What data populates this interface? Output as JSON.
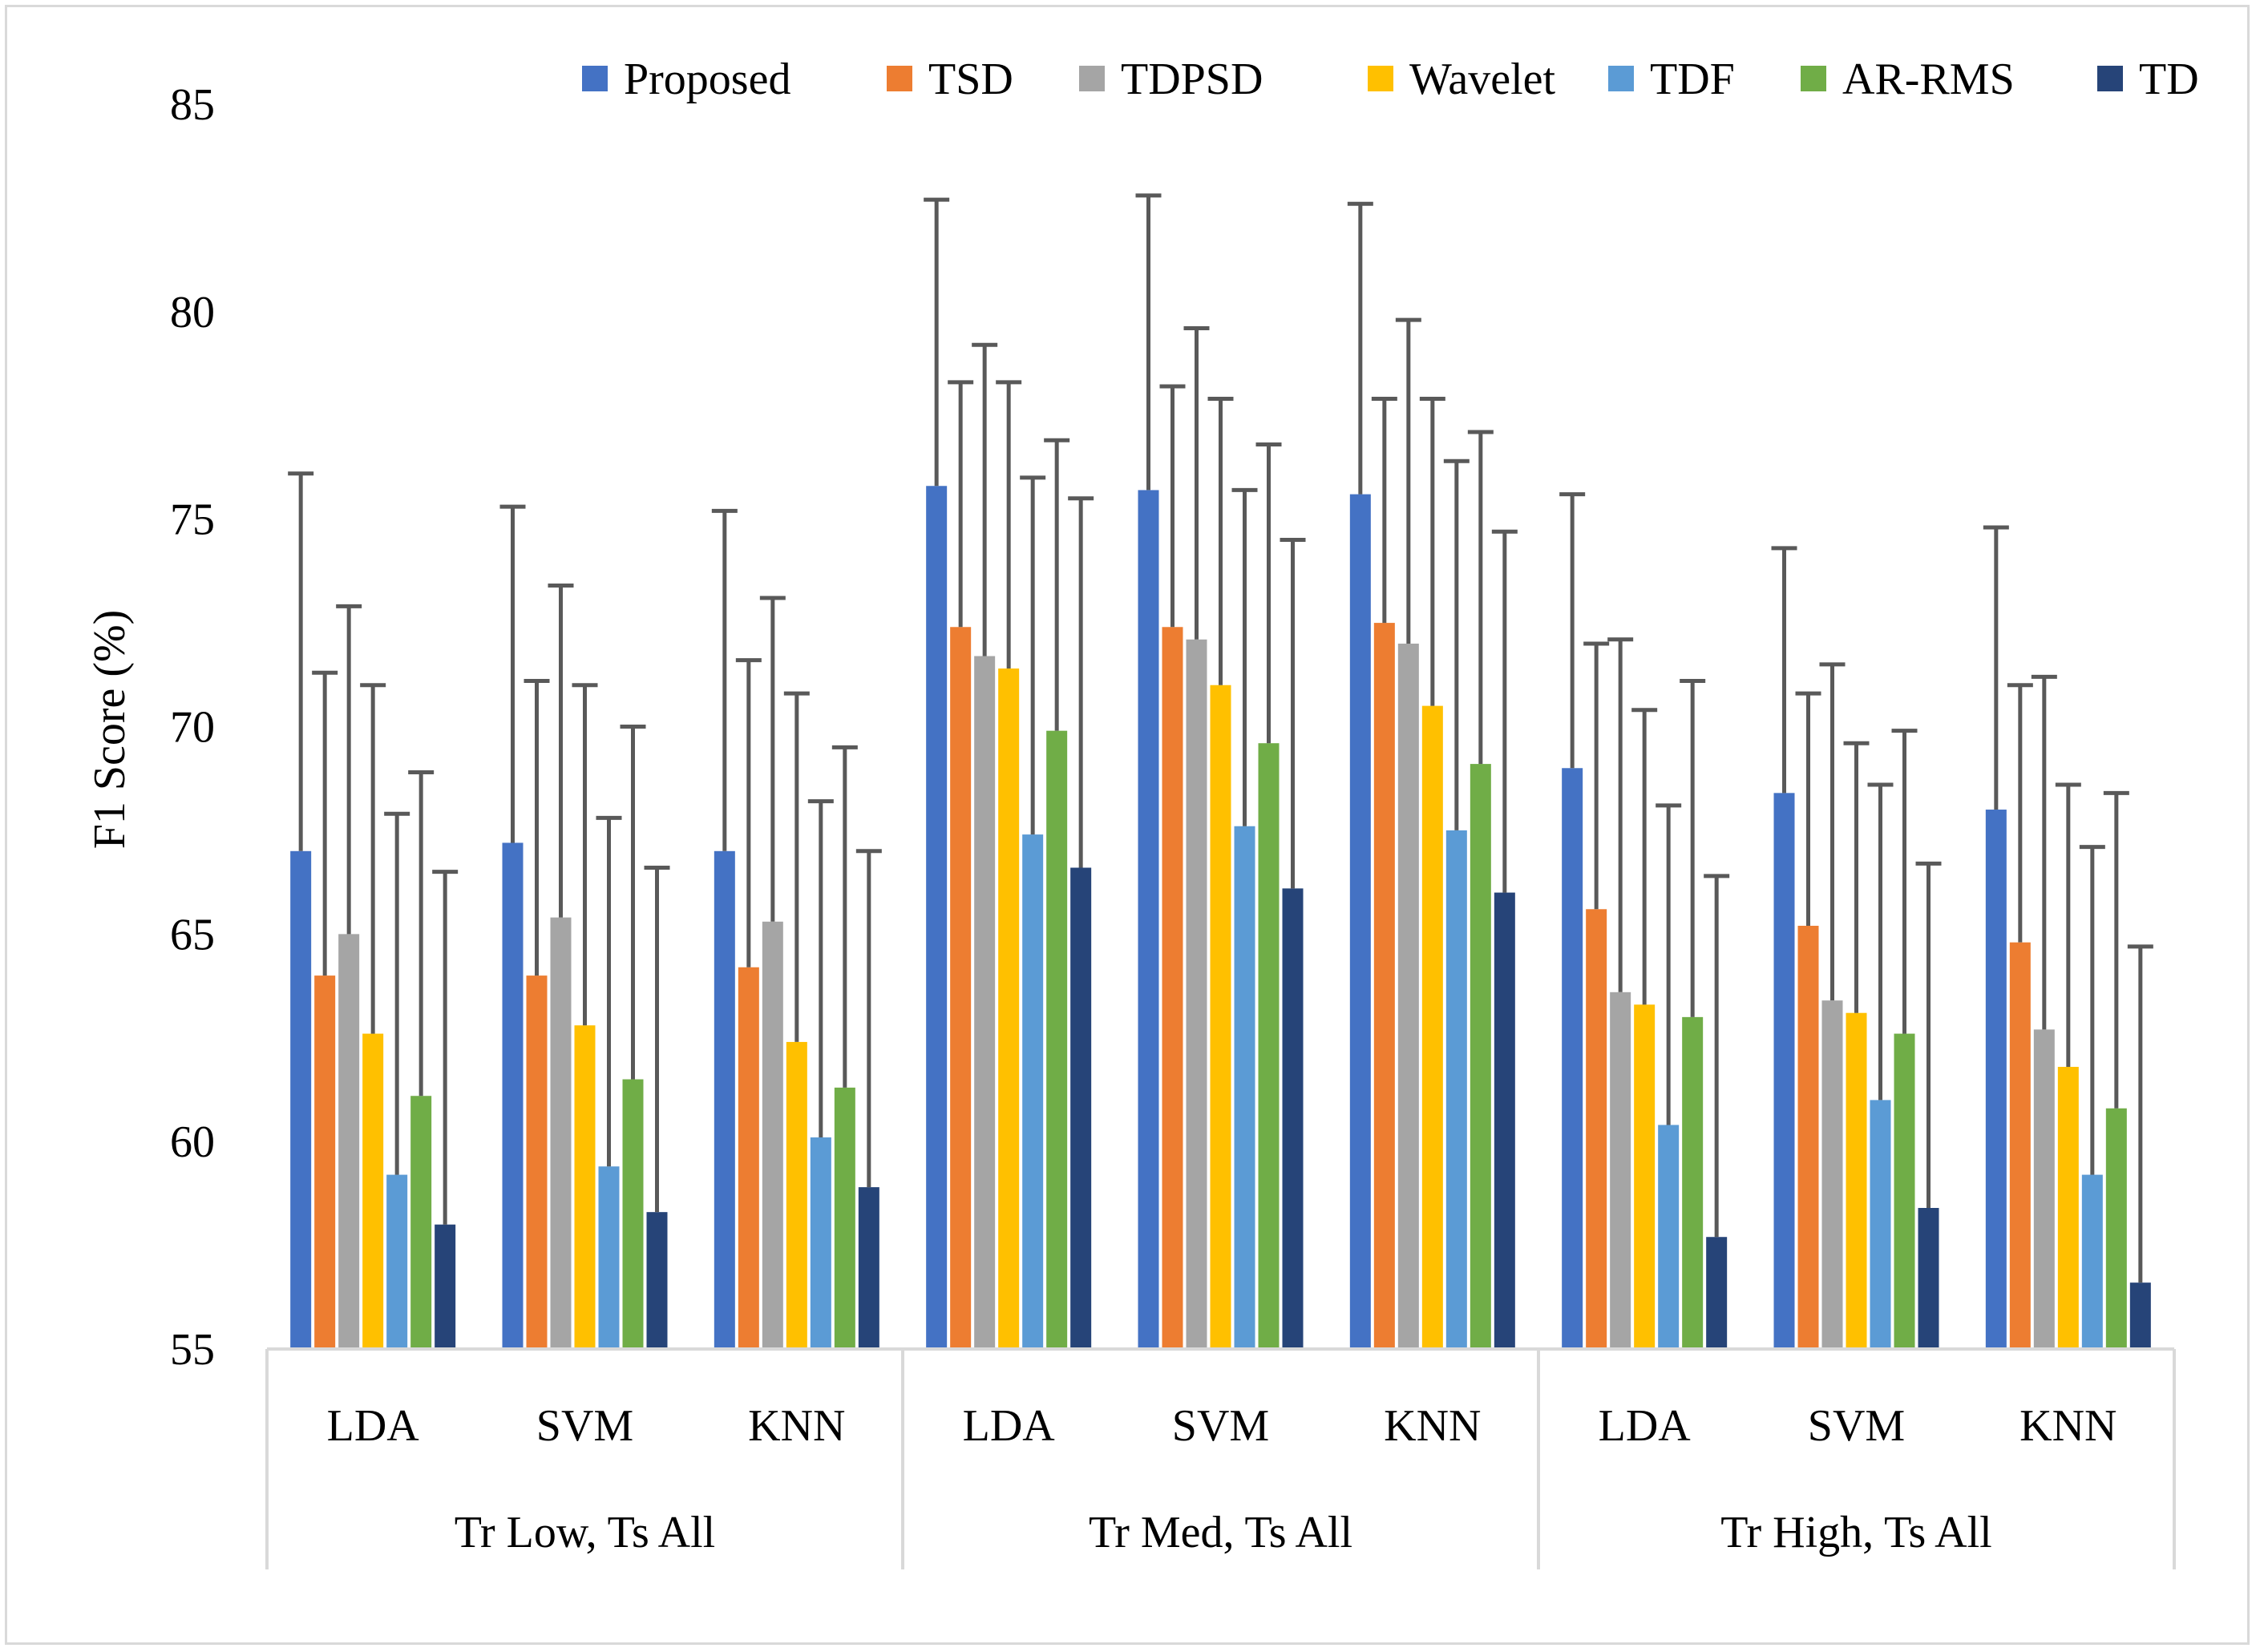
{
  "chart_data": {
    "type": "bar",
    "title": "",
    "xlabel": "",
    "ylabel": "F1 Score (%)",
    "ylim": [
      55,
      85
    ],
    "yticks": [
      55,
      60,
      65,
      70,
      75,
      80,
      85
    ],
    "grid": false,
    "legend_position": "top-right",
    "groups": [
      "Tr Low, Ts All",
      "Tr Med, Ts All",
      "Tr High, Ts All"
    ],
    "classifiers": [
      "LDA",
      "SVM",
      "KNN"
    ],
    "categories": [
      "LDA",
      "SVM",
      "KNN",
      "LDA",
      "SVM",
      "KNN",
      "LDA",
      "SVM",
      "KNN"
    ],
    "error_bars": "upper",
    "series": [
      {
        "name": "Proposed",
        "color": "#4472C4",
        "values": [
          67.0,
          67.2,
          67.0,
          75.8,
          75.7,
          75.6,
          69.0,
          68.4,
          68.0
        ],
        "errors": [
          9.1,
          8.1,
          8.2,
          6.9,
          7.1,
          7.0,
          6.6,
          5.9,
          6.8
        ]
      },
      {
        "name": "TSD",
        "color": "#ED7D31",
        "values": [
          64.0,
          64.0,
          64.2,
          72.4,
          72.4,
          72.5,
          65.6,
          65.2,
          64.8
        ],
        "errors": [
          7.3,
          7.1,
          7.4,
          5.9,
          5.8,
          5.4,
          6.4,
          5.6,
          6.2
        ]
      },
      {
        "name": "TDPSD",
        "color": "#A5A5A5",
        "values": [
          65.0,
          65.4,
          65.3,
          71.7,
          72.1,
          72.0,
          63.6,
          63.4,
          62.7
        ],
        "errors": [
          7.9,
          8.0,
          7.8,
          7.5,
          7.5,
          7.8,
          8.5,
          8.1,
          8.5
        ]
      },
      {
        "name": "Wavelet",
        "color": "#FFC000",
        "values": [
          62.6,
          62.8,
          62.4,
          71.4,
          71.0,
          70.5,
          63.3,
          63.1,
          61.8
        ],
        "errors": [
          8.4,
          8.2,
          8.4,
          6.9,
          6.9,
          7.4,
          7.1,
          6.5,
          6.8
        ]
      },
      {
        "name": "TDF",
        "color": "#5B9BD5",
        "values": [
          59.2,
          59.4,
          60.1,
          67.4,
          67.6,
          67.5,
          60.4,
          61.0,
          59.2
        ],
        "errors": [
          8.7,
          8.4,
          8.1,
          8.6,
          8.1,
          8.9,
          7.7,
          7.6,
          7.9
        ]
      },
      {
        "name": "AR-RMS",
        "color": "#70AD47",
        "values": [
          61.1,
          61.5,
          61.3,
          69.9,
          69.6,
          69.1,
          63.0,
          62.6,
          60.8
        ],
        "errors": [
          7.8,
          8.5,
          8.2,
          7.0,
          7.2,
          8.0,
          8.1,
          7.3,
          7.6
        ]
      },
      {
        "name": "TD",
        "color": "#264478",
        "values": [
          58.0,
          58.3,
          58.9,
          66.6,
          66.1,
          66.0,
          57.7,
          58.4,
          56.6
        ],
        "errors": [
          8.5,
          8.3,
          8.1,
          8.9,
          8.4,
          8.7,
          8.7,
          8.3,
          8.1
        ]
      }
    ]
  },
  "colors": {
    "axis": "#d9d9d9",
    "error_bar": "#595959",
    "text": "#000000",
    "frame": "#d9d9d9"
  }
}
